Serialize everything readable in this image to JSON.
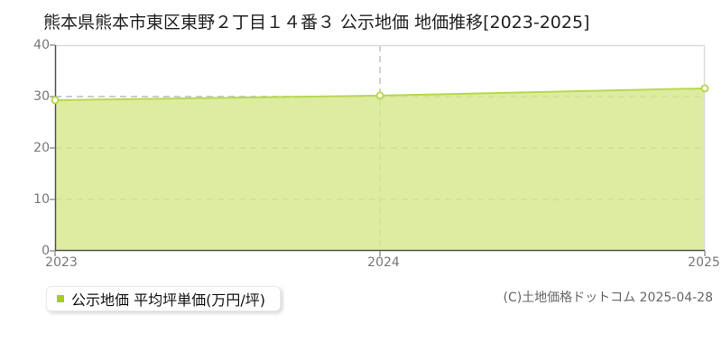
{
  "title": "熊本県熊本市東区東野２丁目１４番３ 公示地価 地価推移[2023-2025]",
  "legend": {
    "label": "公示地価 平均坪単価(万円/坪)"
  },
  "footer": {
    "copyright": "(C)土地価格ドットコム 2025-04-28"
  },
  "colors": {
    "line": "#b7d84f",
    "area_fill": "#d4e788",
    "marker_fill": "#ffffff",
    "legend_swatch": "#a6c832",
    "grid": "#cccccc",
    "guide_dash": "#c4c4c4",
    "axis": "#555555",
    "border": "#dddddd",
    "tick": "#999999",
    "tick_label": "#777777"
  },
  "chart_data": {
    "type": "area",
    "x": [
      "2023",
      "2024",
      "2025"
    ],
    "series": [
      {
        "name": "公示地価 平均坪単価(万円/坪)",
        "values": [
          29.3,
          30.2,
          31.6
        ]
      }
    ],
    "title": "熊本県熊本市東区東野２丁目１４番３ 公示地価 地価推移[2023-2025]",
    "xlabel": "",
    "ylabel": "",
    "ylim": [
      0,
      40
    ],
    "yticks": [
      0,
      10,
      20,
      30,
      40
    ],
    "grid": true,
    "grid_style": "dashed",
    "guide_vline_x": "2024",
    "legend_position": "bottom-left"
  }
}
